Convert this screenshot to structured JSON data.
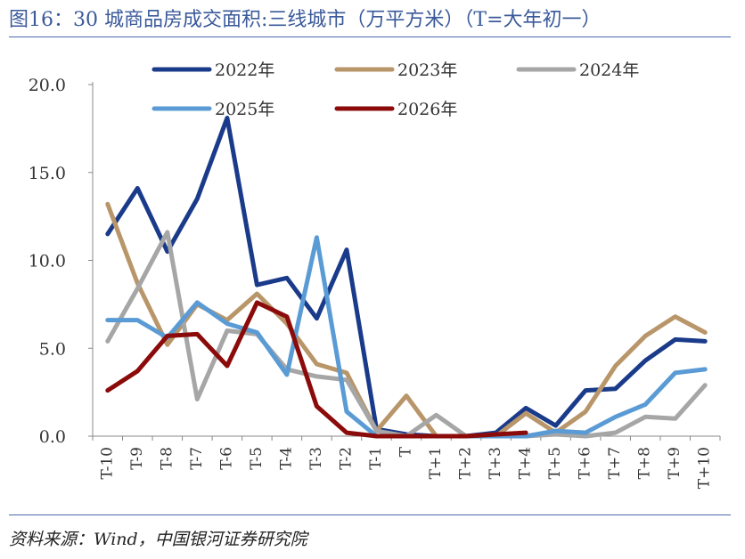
{
  "header": {
    "title": "图16：30 城商品房成交面积:三线城市（万平方米）（T=大年初一）"
  },
  "footer": {
    "source": "资料来源：Wind，中国银河证券研究院"
  },
  "chart_data": {
    "type": "line",
    "title": "30 城商品房成交面积:三线城市（万平方米）（T=大年初一）",
    "xlabel": "",
    "ylabel": "万平方米",
    "ylim": [
      0,
      20
    ],
    "yticks": [
      0,
      5,
      10,
      15,
      20
    ],
    "ytick_labels": [
      "0.0",
      "5.0",
      "10.0",
      "15.0",
      "20.0"
    ],
    "legend_position": "top",
    "grid": false,
    "categories": [
      "T-10",
      "T-9",
      "T-8",
      "T-7",
      "T-6",
      "T-5",
      "T-4",
      "T-3",
      "T-2",
      "T-1",
      "T",
      "T+1",
      "T+2",
      "T+3",
      "T+4",
      "T+5",
      "T+6",
      "T+7",
      "T+8",
      "T+9",
      "T+10"
    ],
    "series": [
      {
        "name": "2022年",
        "color": "#1a3a8a",
        "values": [
          11.5,
          14.1,
          10.5,
          13.5,
          18.1,
          8.6,
          9.0,
          6.7,
          10.6,
          0.4,
          0.1,
          0.0,
          0.0,
          0.2,
          1.6,
          0.6,
          2.6,
          2.7,
          4.3,
          5.5,
          5.4
        ]
      },
      {
        "name": "2023年",
        "color": "#b8966a",
        "values": [
          13.2,
          8.7,
          5.2,
          7.5,
          6.6,
          8.1,
          6.4,
          4.1,
          3.6,
          0.3,
          2.3,
          0.0,
          0.0,
          0.0,
          1.3,
          0.2,
          1.4,
          4.0,
          5.7,
          6.8,
          5.9
        ]
      },
      {
        "name": "2024年",
        "color": "#a6a6a6",
        "values": [
          5.4,
          8.4,
          11.6,
          2.1,
          6.0,
          5.8,
          3.8,
          3.4,
          3.2,
          0.3,
          0.0,
          1.2,
          0.0,
          0.0,
          0.0,
          0.1,
          0.0,
          0.2,
          1.1,
          1.0,
          2.9
        ]
      },
      {
        "name": "2025年",
        "color": "#5a9bd5",
        "values": [
          6.6,
          6.6,
          5.6,
          7.6,
          6.4,
          5.9,
          3.5,
          11.3,
          1.4,
          0.0,
          0.0,
          0.0,
          0.0,
          0.0,
          0.0,
          0.3,
          0.2,
          1.1,
          1.8,
          3.6,
          3.8
        ]
      },
      {
        "name": "2026年",
        "color": "#8b0a0a",
        "values": [
          2.6,
          3.7,
          5.7,
          5.8,
          4.0,
          7.6,
          6.8,
          1.7,
          0.2,
          0.0,
          0.0,
          0.0,
          0.0,
          0.1,
          0.2,
          null,
          null,
          null,
          null,
          null,
          null
        ]
      }
    ]
  }
}
